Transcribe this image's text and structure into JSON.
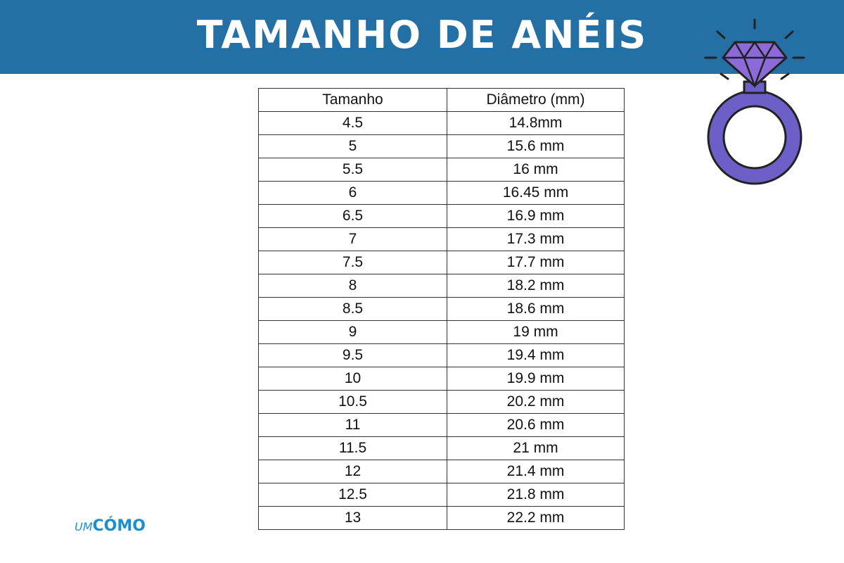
{
  "header": {
    "title": "TAMANHO DE ANÉIS"
  },
  "table": {
    "headers": [
      "Tamanho",
      "Diâmetro (mm)"
    ],
    "rows": [
      [
        "4.5",
        "14.8mm"
      ],
      [
        "5",
        "15.6 mm"
      ],
      [
        "5.5",
        "16 mm"
      ],
      [
        "6",
        "16.45 mm"
      ],
      [
        "6.5",
        "16.9 mm"
      ],
      [
        "7",
        "17.3 mm"
      ],
      [
        "7.5",
        "17.7 mm"
      ],
      [
        "8",
        "18.2 mm"
      ],
      [
        "8.5",
        "18.6 mm"
      ],
      [
        "9",
        "19 mm"
      ],
      [
        "9.5",
        "19.4 mm"
      ],
      [
        "10",
        "19.9 mm"
      ],
      [
        "10.5",
        "20.2 mm"
      ],
      [
        "11",
        "20.6 mm"
      ],
      [
        "11.5",
        "21 mm"
      ],
      [
        "12",
        "21.4 mm"
      ],
      [
        "12.5",
        "21.8 mm"
      ],
      [
        "13",
        "22.2 mm"
      ]
    ]
  },
  "logo": {
    "prefix": "UM",
    "name": "CÓMO"
  }
}
